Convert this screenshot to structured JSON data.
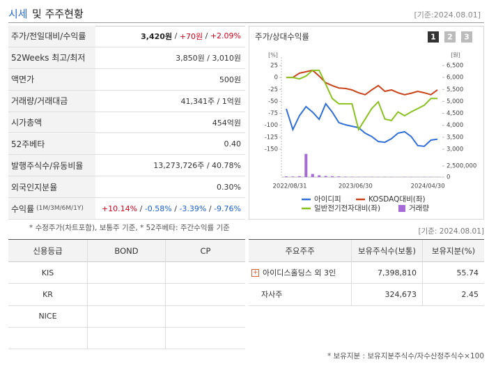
{
  "header": {
    "title_accent": "시세",
    "title_rest": "및 주주현황",
    "date": "[기준:2024.08.01]"
  },
  "summary": {
    "separator": " / ",
    "rows": [
      {
        "label": "주가/전일대비/수익률",
        "parts": [
          {
            "text": "3,420원",
            "color": "#222222",
            "bold": true
          },
          {
            "text": "+70원",
            "color": "#d0021b"
          },
          {
            "text": "+2.09%",
            "color": "#d0021b"
          }
        ]
      },
      {
        "label": "52Weeks 최고/최저",
        "value": "3,850원 / 3,010원"
      },
      {
        "label": "액면가",
        "value": "500원"
      },
      {
        "label": "거래량/거래대금",
        "value": "41,341주 / 1억원"
      },
      {
        "label": "시가총액",
        "value": "454억원"
      },
      {
        "label": "52주베타",
        "value": "0.40"
      },
      {
        "label": "발행주식수/유동비율",
        "value": "13,273,726주 / 40.78%"
      },
      {
        "label": "외국인지분율",
        "value": "0.30%"
      },
      {
        "label": "수익률",
        "sublabel": "(1M/3M/6M/1Y)",
        "parts": [
          {
            "text": "+10.14%",
            "color": "#d0021b"
          },
          {
            "text": "-0.58%",
            "color": "#1a5fd0"
          },
          {
            "text": "-3.39%",
            "color": "#1a5fd0"
          },
          {
            "text": "-9.76%",
            "color": "#1a5fd0"
          }
        ]
      }
    ],
    "note": "* 수정주가(차트포함), 보통주 기준, * 52주베타: 주간수익률 기준"
  },
  "chart_data": {
    "type": "line",
    "title": "주가/상대수익률",
    "buttons": [
      "1",
      "2",
      "3"
    ],
    "ylabel": "[%]",
    "y2label": "[원]",
    "categories": [
      "2022/08/31",
      null,
      null,
      null,
      null,
      null,
      null,
      null,
      null,
      null,
      "2023/06/30",
      null,
      null,
      null,
      null,
      null,
      null,
      null,
      null,
      null,
      null,
      "2024/04/30",
      null,
      null
    ],
    "ylim": [
      -150,
      25
    ],
    "yticks": [
      25,
      0,
      -25,
      -50,
      -75,
      -100,
      -125,
      -150
    ],
    "y2lim": [
      3000,
      6500
    ],
    "y2ticks": [
      {
        "value": 6500,
        "label": "6,500"
      },
      {
        "value": 6000,
        "label": "6,000"
      },
      {
        "value": 5500,
        "label": "5,500"
      },
      {
        "value": 5000,
        "label": "5,000"
      },
      {
        "value": 4500,
        "label": "4,500"
      },
      {
        "value": 4000,
        "label": "4,000"
      },
      {
        "value": 3500,
        "label": "3,500"
      },
      {
        "value": 3000,
        "label": "3,000"
      }
    ],
    "y3lim": [
      0,
      6000000
    ],
    "y3ticks": [
      {
        "value": 2500000,
        "label": "2,500,000"
      },
      0
    ],
    "series": [
      {
        "name": "아이디피",
        "color": "#2f6fd6",
        "axis": "y2",
        "values": [
          4690,
          3820,
          4400,
          4780,
          4550,
          4250,
          4900,
          4550,
          4110,
          4020,
          3960,
          3900,
          3670,
          3530,
          3320,
          3290,
          3440,
          3670,
          3730,
          3530,
          3150,
          3120,
          3380,
          3420
        ]
      },
      {
        "name": "KOSDAQ대비(좌)",
        "color": "#c8431a",
        "values": [
          0,
          0,
          9,
          12,
          15,
          3,
          -11,
          -17,
          -22,
          -23,
          -26,
          -32,
          -36,
          -26,
          -17,
          -29,
          -26,
          -32,
          -36,
          -33,
          -29,
          -32,
          -36,
          -26
        ]
      },
      {
        "name": "일반전기전자대비(좌)",
        "color": "#8bc11f",
        "values": [
          0,
          0,
          -3,
          3,
          15,
          15,
          -14,
          -44,
          -55,
          -55,
          -55,
          -109,
          -87,
          -65,
          -51,
          -87,
          -90,
          -72,
          -80,
          -72,
          -65,
          -58,
          -44,
          -44
        ]
      },
      {
        "name": "거래량",
        "color": "#a66ad6",
        "type": "bar",
        "axis": "y3",
        "values": [
          150000,
          120000,
          200000,
          5200000,
          700000,
          400000,
          250000,
          200000,
          150000,
          100000,
          80000,
          60000,
          50000,
          60000,
          40000,
          50000,
          40000,
          30000,
          60000,
          40000,
          30000,
          50000,
          40000,
          30000
        ]
      }
    ]
  },
  "credit": {
    "headers": [
      "신용등급",
      "BOND",
      "CP"
    ],
    "agencies": [
      "KIS",
      "KR",
      "NICE"
    ]
  },
  "holders": {
    "date": "[기준: 2024.08.01]",
    "headers": [
      "주요주주",
      "보유주식수(보통)",
      "보유지분(%)"
    ],
    "rows": [
      [
        "아이디스홀딩스 외 3인",
        "7,398,810",
        "55.74"
      ],
      [
        "자사주",
        "324,673",
        "2.45"
      ]
    ],
    "note": "* 보유지분 : 보유지분주식수/자수산정주식수×100"
  }
}
